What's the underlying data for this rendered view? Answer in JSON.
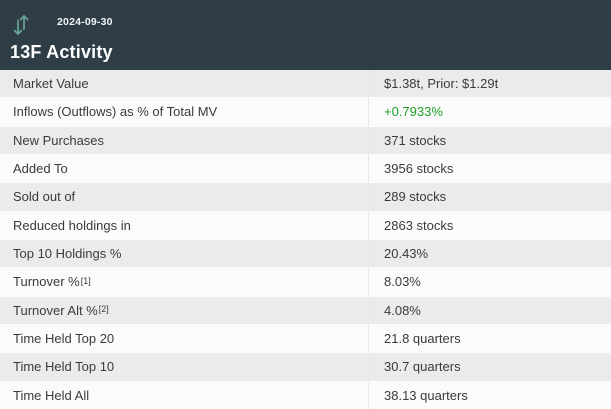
{
  "header": {
    "date": "2024-09-30",
    "title": "13F Activity",
    "icon": "up-down-arrows-icon"
  },
  "table": {
    "rows": [
      {
        "label": "Market Value",
        "value": "$1.38t, Prior: $1.29t"
      },
      {
        "label": "Inflows (Outflows) as % of Total MV",
        "value": "+0.7933%",
        "value_color": "positive"
      },
      {
        "label": "New Purchases",
        "value": "371 stocks"
      },
      {
        "label": "Added To",
        "value": "3956 stocks"
      },
      {
        "label": "Sold out of",
        "value": "289 stocks"
      },
      {
        "label": "Reduced holdings in",
        "value": "2863 stocks"
      },
      {
        "label": "Top 10 Holdings %",
        "value": "20.43%"
      },
      {
        "label": "Turnover %",
        "sup": "[1]",
        "value": "8.03%"
      },
      {
        "label": "Turnover Alt %",
        "sup": "[2]",
        "value": "4.08%"
      },
      {
        "label": "Time Held Top 20",
        "value": "21.8 quarters"
      },
      {
        "label": "Time Held Top 10",
        "value": "30.7 quarters"
      },
      {
        "label": "Time Held All",
        "value": "38.13 quarters"
      }
    ]
  },
  "colors": {
    "header_bg": "#2f3d47",
    "positive": "#21a12c",
    "icon_teal": "#68a394"
  }
}
